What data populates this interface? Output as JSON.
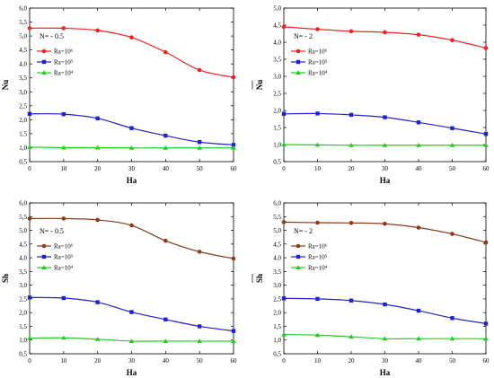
{
  "chart_data": [
    {
      "type": "line",
      "x": [
        0,
        10,
        20,
        30,
        40,
        50,
        60
      ],
      "xlabel": "Ha",
      "ylabel": "Nu",
      "ylabel_bar": true,
      "xlim": [
        0,
        60
      ],
      "ylim": [
        0.5,
        6.0
      ],
      "xticks": [
        "0",
        "10",
        "20",
        "30",
        "40",
        "50",
        "60"
      ],
      "yticks": [
        "0,5",
        "1,0",
        "1,5",
        "2,0",
        "2,5",
        "3,0",
        "3,5",
        "4,0",
        "4,5",
        "5,0",
        "5,5",
        "6,0"
      ],
      "annotation": "N= - 0.5",
      "series": [
        {
          "name": "Ra=10⁶",
          "color": "#ee2222",
          "marker": "circle",
          "values": [
            5.28,
            5.28,
            5.2,
            4.95,
            4.42,
            3.78,
            3.52
          ]
        },
        {
          "name": "Ra=10⁵",
          "color": "#2222cc",
          "marker": "square",
          "values": [
            2.21,
            2.2,
            2.05,
            1.7,
            1.43,
            1.2,
            1.1
          ]
        },
        {
          "name": "Ra=10⁴",
          "color": "#22cc22",
          "marker": "triangle",
          "values": [
            1.02,
            1.0,
            1.0,
            0.99,
            0.99,
            0.99,
            0.99
          ]
        }
      ]
    },
    {
      "type": "line",
      "x": [
        0,
        10,
        20,
        30,
        40,
        50,
        60
      ],
      "xlabel": "Ha",
      "ylabel": "Nu",
      "ylabel_bar": true,
      "xlim": [
        0,
        60
      ],
      "ylim": [
        0.5,
        5.0
      ],
      "xticks": [
        "0",
        "10",
        "20",
        "30",
        "40",
        "50",
        "60"
      ],
      "yticks": [
        "0,5",
        "1,0",
        "1,5",
        "2,0",
        "2,5",
        "3,0",
        "3,5",
        "4,0",
        "4,5",
        "5,0"
      ],
      "annotation": "N= - 2",
      "series": [
        {
          "name": "Ra=10⁶",
          "color": "#ee2222",
          "marker": "circle",
          "values": [
            4.45,
            4.38,
            4.32,
            4.29,
            4.22,
            4.06,
            3.83
          ]
        },
        {
          "name": "Ra=10⁵",
          "color": "#2222cc",
          "marker": "square",
          "values": [
            1.9,
            1.91,
            1.87,
            1.8,
            1.65,
            1.48,
            1.31
          ]
        },
        {
          "name": "Ra=10⁴",
          "color": "#22cc22",
          "marker": "triangle",
          "values": [
            1.0,
            0.99,
            0.98,
            0.98,
            0.98,
            0.98,
            0.98
          ]
        }
      ]
    },
    {
      "type": "line",
      "x": [
        0,
        10,
        20,
        30,
        40,
        50,
        60
      ],
      "xlabel": "Ha",
      "ylabel": "Sh",
      "ylabel_bar": true,
      "xlim": [
        0,
        60
      ],
      "ylim": [
        0.5,
        6.0
      ],
      "xticks": [
        "0",
        "10",
        "20",
        "30",
        "40",
        "50",
        "60"
      ],
      "yticks": [
        "0,5",
        "1,0",
        "1,5",
        "2,0",
        "2,5",
        "3,0",
        "3,5",
        "4,0",
        "4,5",
        "5,0",
        "5,5",
        "6,0"
      ],
      "annotation": "N= - 0.5",
      "series": [
        {
          "name": "Ra=10⁶",
          "color": "#8b3a1a",
          "marker": "circle",
          "values": [
            5.43,
            5.43,
            5.38,
            5.18,
            4.62,
            4.22,
            3.97
          ]
        },
        {
          "name": "Ra=10⁵",
          "color": "#2222cc",
          "marker": "square",
          "values": [
            2.55,
            2.53,
            2.38,
            2.02,
            1.75,
            1.5,
            1.33
          ]
        },
        {
          "name": "Ra=10⁴",
          "color": "#22cc22",
          "marker": "triangle",
          "values": [
            1.07,
            1.08,
            1.03,
            0.96,
            0.96,
            0.96,
            0.96
          ]
        }
      ]
    },
    {
      "type": "line",
      "x": [
        0,
        10,
        20,
        30,
        40,
        50,
        60
      ],
      "xlabel": "Ha",
      "ylabel": "Sh",
      "ylabel_bar": true,
      "xlim": [
        0,
        60
      ],
      "ylim": [
        0.5,
        6.0
      ],
      "xticks": [
        "0",
        "10",
        "20",
        "30",
        "40",
        "50",
        "60"
      ],
      "yticks": [
        "0,5",
        "1,0",
        "1,5",
        "2,0",
        "2,5",
        "3,0",
        "3,5",
        "4,0",
        "4,5",
        "5,0",
        "5,5",
        "6,0"
      ],
      "annotation": "N= - 2",
      "series": [
        {
          "name": "Ra=10⁶",
          "color": "#8b3a1a",
          "marker": "circle",
          "values": [
            5.3,
            5.28,
            5.27,
            5.24,
            5.1,
            4.87,
            4.56
          ]
        },
        {
          "name": "Ra=10⁵",
          "color": "#2222cc",
          "marker": "square",
          "values": [
            2.52,
            2.5,
            2.44,
            2.3,
            2.07,
            1.8,
            1.6
          ]
        },
        {
          "name": "Ra=10⁴",
          "color": "#22cc22",
          "marker": "triangle",
          "values": [
            1.2,
            1.18,
            1.12,
            1.05,
            1.05,
            1.05,
            1.05
          ]
        }
      ]
    }
  ]
}
